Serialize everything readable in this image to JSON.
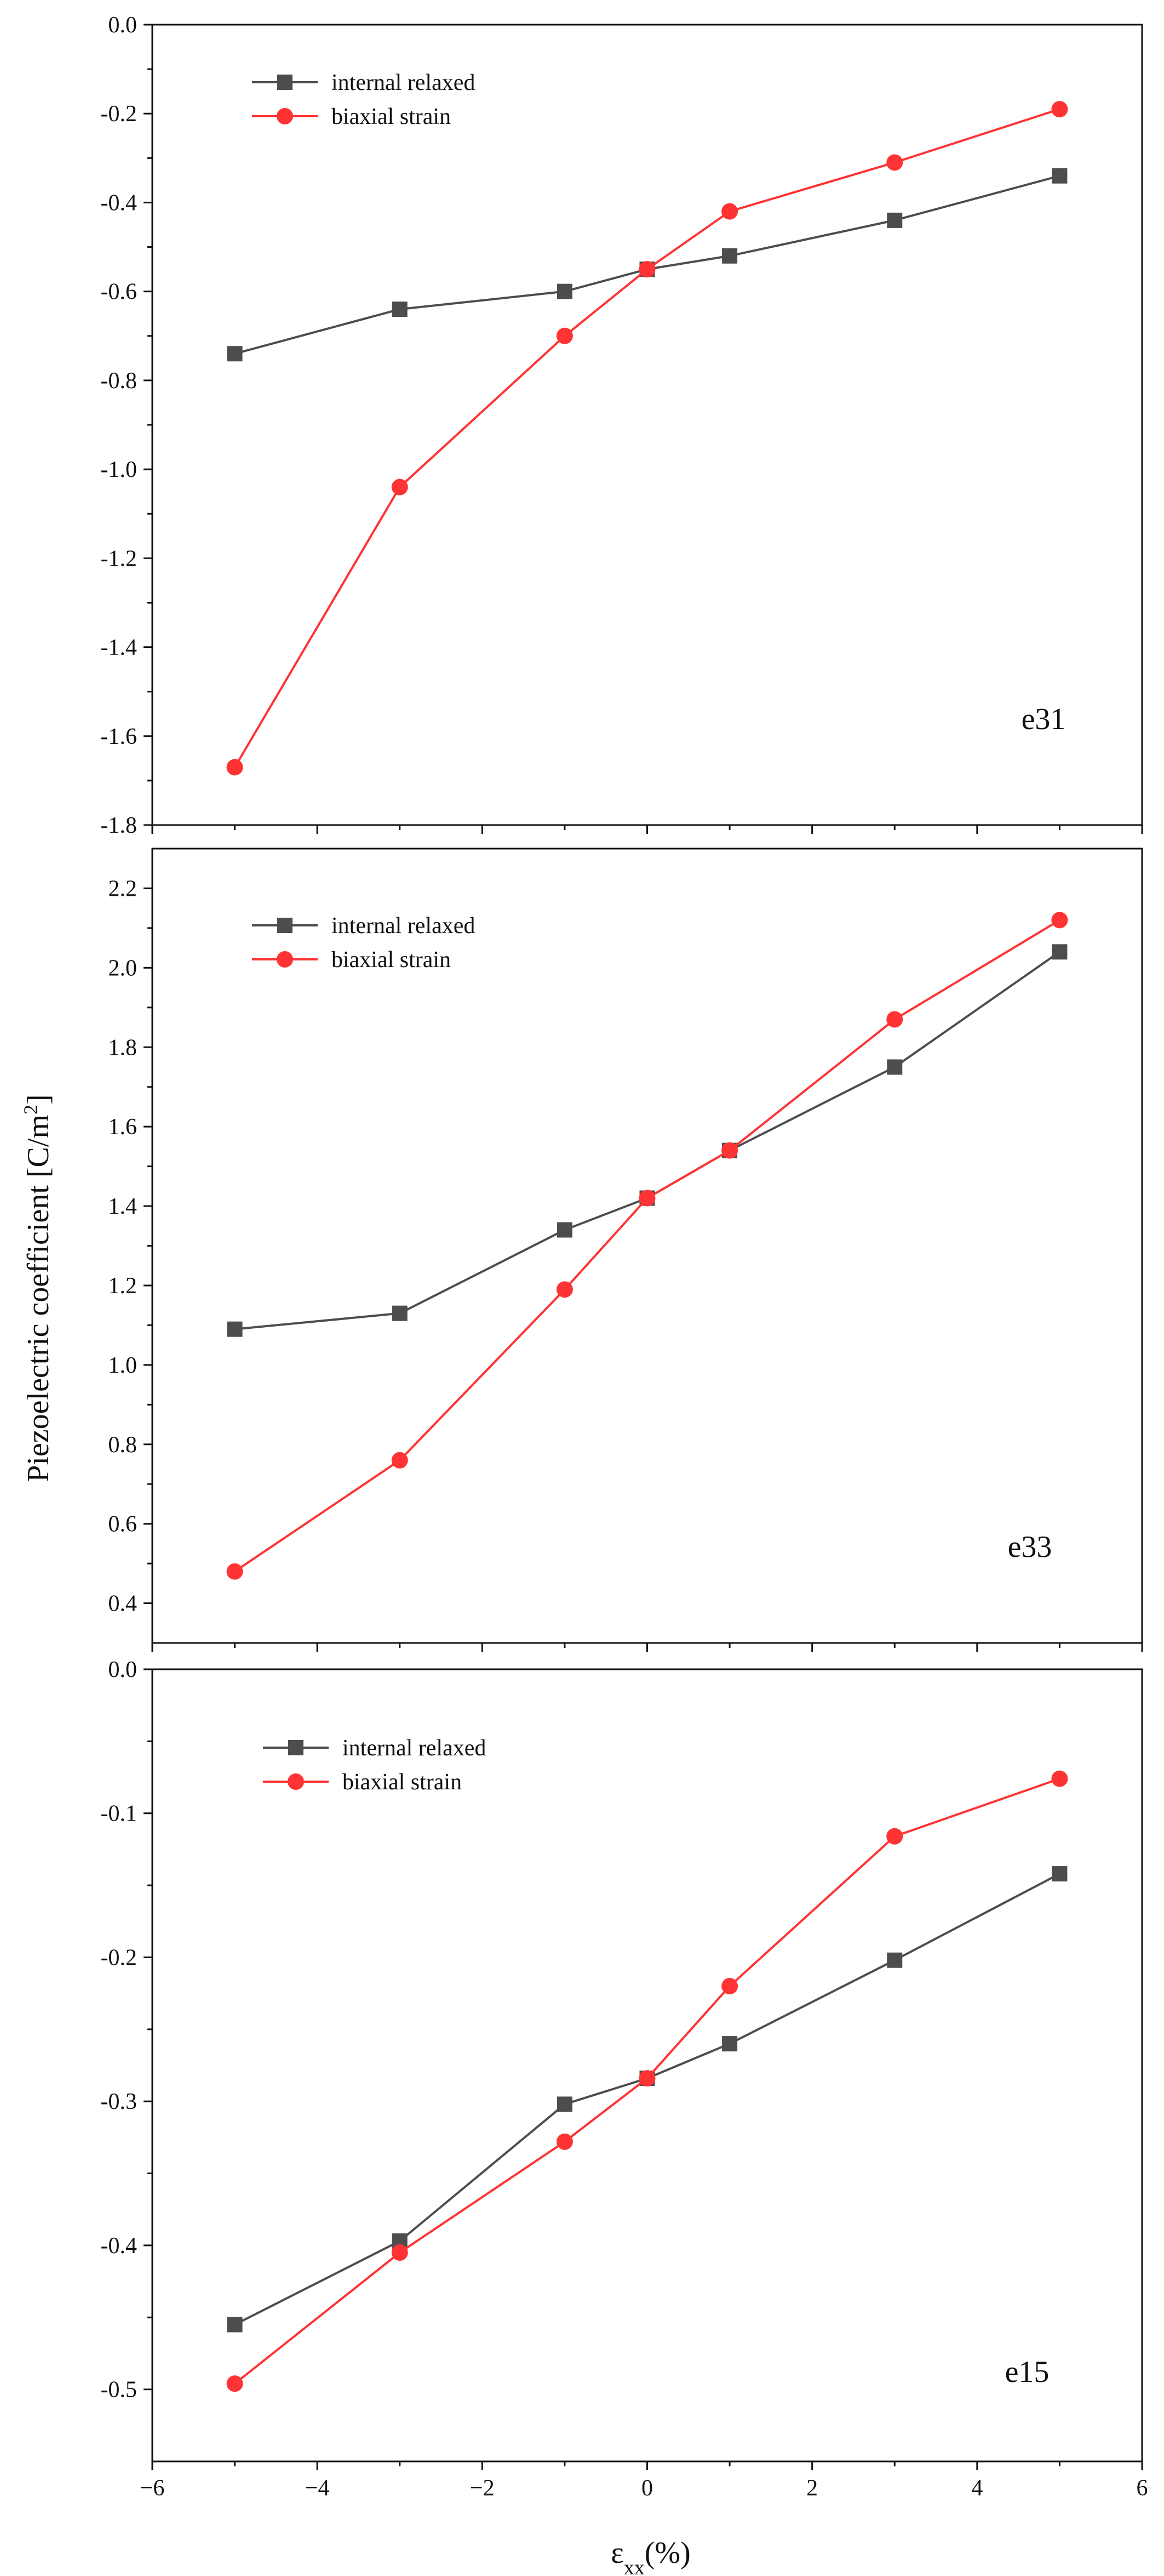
{
  "figure": {
    "x_axis_label": "ε",
    "x_axis_label_sub": "xx",
    "x_axis_label_unit": "(%)",
    "y_axis_label": "Piezoelectric coefficient [C/m",
    "y_axis_label_sup": "2",
    "y_axis_label_end": "]"
  },
  "colors": {
    "internal_relaxed": "#4d4d4d",
    "biaxial_strain": "#ff3333",
    "axis": "#111111"
  },
  "chart_data": [
    {
      "type": "line",
      "panel_label": "e31",
      "x": [
        -5,
        -3,
        -1,
        0,
        1,
        3,
        5
      ],
      "xlim": [
        -6,
        6
      ],
      "ylim": [
        -1.8,
        0.0
      ],
      "y_ticks": [
        "0.0",
        "-0.2",
        "-0.4",
        "-0.6",
        "-0.8",
        "-1.0",
        "-1.2",
        "-1.4",
        "-1.6",
        "-1.8"
      ],
      "x_ticks": [],
      "legend_position": "top-left",
      "series": [
        {
          "name": "internal relaxed",
          "marker": "square",
          "values": [
            -0.74,
            -0.64,
            -0.6,
            -0.55,
            -0.52,
            -0.44,
            -0.34
          ]
        },
        {
          "name": "biaxial strain",
          "marker": "circle",
          "values": [
            -1.67,
            -1.04,
            -0.7,
            -0.55,
            -0.42,
            -0.31,
            -0.19
          ]
        }
      ]
    },
    {
      "type": "line",
      "panel_label": "e33",
      "x": [
        -5,
        -3,
        -1,
        0,
        1,
        3,
        5
      ],
      "xlim": [
        -6,
        6
      ],
      "ylim": [
        0.3,
        2.3
      ],
      "y_ticks": [
        "2.2",
        "2.0",
        "1.8",
        "1.6",
        "1.4",
        "1.2",
        "1.0",
        "0.8",
        "0.6",
        "0.4"
      ],
      "x_ticks": [],
      "legend_position": "top-left",
      "series": [
        {
          "name": "internal relaxed",
          "marker": "square",
          "values": [
            1.09,
            1.13,
            1.34,
            1.42,
            1.54,
            1.75,
            2.04
          ]
        },
        {
          "name": "biaxial strain",
          "marker": "circle",
          "values": [
            0.48,
            0.76,
            1.19,
            1.42,
            1.54,
            1.87,
            2.12
          ]
        }
      ]
    },
    {
      "type": "line",
      "panel_label": "e15",
      "x": [
        -5,
        -3,
        -1,
        0,
        1,
        3,
        5
      ],
      "xlim": [
        -6,
        6
      ],
      "ylim": [
        -0.55,
        0.0
      ],
      "y_ticks": [
        "0.0",
        "-0.1",
        "-0.2",
        "-0.3",
        "-0.4",
        "-0.5"
      ],
      "x_ticks": [
        "−6",
        "−4",
        "−2",
        "0",
        "2",
        "4",
        "6"
      ],
      "legend_position": "top-left",
      "series": [
        {
          "name": "internal relaxed",
          "marker": "square",
          "values": [
            -0.455,
            -0.397,
            -0.302,
            -0.284,
            -0.26,
            -0.202,
            -0.142
          ]
        },
        {
          "name": "biaxial strain",
          "marker": "circle",
          "values": [
            -0.496,
            -0.405,
            -0.328,
            -0.284,
            -0.22,
            -0.116,
            -0.076
          ]
        }
      ]
    }
  ]
}
